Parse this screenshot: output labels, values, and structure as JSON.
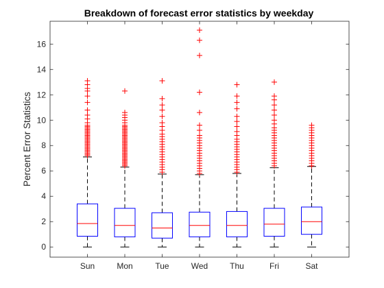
{
  "chart_data": {
    "type": "box",
    "title": "Breakdown of forecast error statistics by weekday",
    "xlabel": "",
    "ylabel": "Percent Error Statistics",
    "categories": [
      "Sun",
      "Mon",
      "Tue",
      "Wed",
      "Thu",
      "Fri",
      "Sat"
    ],
    "ylim": [
      -0.8,
      17.8
    ],
    "yticks": [
      "0",
      "2",
      "4",
      "6",
      "8",
      "10",
      "12",
      "14",
      "16"
    ],
    "grid": false,
    "legend": "none",
    "colors": {
      "box": "#0000ff",
      "median": "#ff0000",
      "whisker": "#000000",
      "outlier": "#ff0000",
      "axis": "#262626"
    },
    "boxes": [
      {
        "category": "Sun",
        "min": 0,
        "q1": 0.85,
        "median": 1.85,
        "q3": 3.4,
        "max": 7.1,
        "outliers": [
          7.2,
          7.3,
          7.4,
          7.5,
          7.6,
          7.7,
          7.8,
          7.9,
          8.0,
          8.1,
          8.2,
          8.3,
          8.4,
          8.5,
          8.6,
          8.7,
          8.8,
          8.9,
          9.0,
          9.1,
          9.2,
          9.3,
          9.4,
          9.5,
          9.6,
          9.8,
          10.1,
          10.4,
          10.8,
          11.4,
          11.9,
          12.3,
          12.5,
          12.8,
          13.1
        ]
      },
      {
        "category": "Mon",
        "min": 0,
        "q1": 0.8,
        "median": 1.7,
        "q3": 3.05,
        "max": 6.3,
        "outliers": [
          6.4,
          6.5,
          6.6,
          6.7,
          6.8,
          6.9,
          7.0,
          7.1,
          7.2,
          7.3,
          7.4,
          7.5,
          7.6,
          7.7,
          7.8,
          7.9,
          8.0,
          8.1,
          8.2,
          8.3,
          8.4,
          8.5,
          8.6,
          8.7,
          8.8,
          8.9,
          9.0,
          9.1,
          9.2,
          9.3,
          9.4,
          9.5,
          9.6,
          9.8,
          10.0,
          10.2,
          10.4,
          10.6,
          12.3
        ]
      },
      {
        "category": "Tue",
        "min": 0,
        "q1": 0.7,
        "median": 1.5,
        "q3": 2.7,
        "max": 5.75,
        "outliers": [
          5.9,
          6.1,
          6.3,
          6.5,
          6.7,
          6.9,
          7.1,
          7.3,
          7.5,
          7.7,
          7.9,
          8.1,
          8.3,
          8.5,
          8.7,
          8.9,
          9.2,
          9.5,
          9.8,
          10.3,
          10.8,
          11.2,
          11.7,
          13.1
        ]
      },
      {
        "category": "Wed",
        "min": 0,
        "q1": 0.8,
        "median": 1.7,
        "q3": 2.75,
        "max": 5.7,
        "outliers": [
          5.8,
          6.0,
          6.2,
          6.4,
          6.6,
          6.8,
          7.0,
          7.2,
          7.4,
          7.6,
          7.8,
          8.0,
          8.2,
          8.4,
          8.6,
          8.8,
          9.2,
          9.6,
          10.6,
          12.2,
          15.1,
          16.3,
          17.1
        ]
      },
      {
        "category": "Thu",
        "min": 0,
        "q1": 0.8,
        "median": 1.7,
        "q3": 2.8,
        "max": 5.8,
        "outliers": [
          5.9,
          6.1,
          6.3,
          6.5,
          6.7,
          6.9,
          7.1,
          7.3,
          7.5,
          7.7,
          7.9,
          8.1,
          8.3,
          8.5,
          8.8,
          9.1,
          9.5,
          9.9,
          10.3,
          10.9,
          11.4,
          11.9,
          12.8
        ]
      },
      {
        "category": "Fri",
        "min": 0,
        "q1": 0.85,
        "median": 1.8,
        "q3": 3.05,
        "max": 6.25,
        "outliers": [
          6.4,
          6.6,
          6.8,
          7.0,
          7.2,
          7.4,
          7.6,
          7.8,
          8.0,
          8.2,
          8.4,
          8.6,
          8.8,
          9.0,
          9.2,
          9.4,
          9.7,
          10.0,
          10.4,
          10.8,
          11.2,
          11.6,
          11.9,
          13.0
        ]
      },
      {
        "category": "Sat",
        "min": 0,
        "q1": 1.0,
        "median": 2.0,
        "q3": 3.15,
        "max": 6.35,
        "outliers": [
          6.4,
          6.6,
          6.8,
          7.0,
          7.2,
          7.4,
          7.6,
          7.8,
          8.0,
          8.2,
          8.4,
          8.6,
          8.8,
          9.0,
          9.2,
          9.4,
          9.6
        ]
      }
    ]
  }
}
